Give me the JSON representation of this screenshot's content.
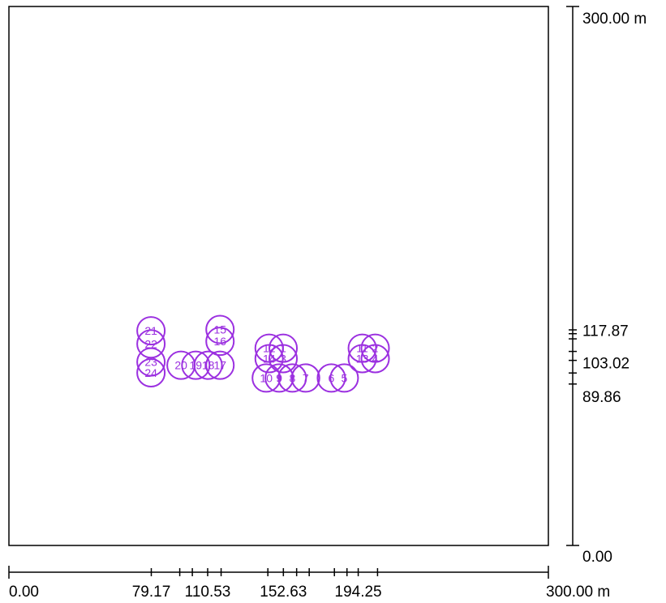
{
  "plot": {
    "extent_m": 300,
    "frame_color": "#000000",
    "node_color": "#9b30e0",
    "x_labels": [
      {
        "value": 0,
        "text": "0.00"
      },
      {
        "value": 79.17,
        "text": "79.17"
      },
      {
        "value": 110.53,
        "text": "110.53"
      },
      {
        "value": 152.63,
        "text": "152.63"
      },
      {
        "value": 194.25,
        "text": "194.25"
      },
      {
        "value": 300,
        "text": "300.00 m"
      }
    ],
    "x_ticks": [
      0,
      79.17,
      95,
      102,
      110.53,
      118,
      144,
      152.63,
      160,
      167,
      181,
      188,
      194.25,
      205,
      300
    ],
    "y_labels": [
      {
        "value": 0,
        "text": "0.00"
      },
      {
        "value": 89.86,
        "text": "89.86"
      },
      {
        "value": 103.02,
        "text": "103.02"
      },
      {
        "value": 117.87,
        "text": "117.87"
      },
      {
        "value": 300,
        "text": "300.00 m"
      }
    ],
    "y_ticks": [
      0,
      89.86,
      96,
      103.02,
      108,
      115,
      117.87,
      120,
      300
    ]
  },
  "nodes": [
    {
      "id": "1",
      "x": 152.5,
      "y": 109.8
    },
    {
      "id": "2",
      "x": 203.7,
      "y": 109.8
    },
    {
      "id": "3",
      "x": 152.5,
      "y": 104.0
    },
    {
      "id": "4",
      "x": 203.7,
      "y": 104.0
    },
    {
      "id": "5",
      "x": 186.5,
      "y": 93.2
    },
    {
      "id": "6",
      "x": 179.3,
      "y": 93.2
    },
    {
      "id": "7",
      "x": 165.0,
      "y": 93.2
    },
    {
      "id": "8",
      "x": 157.6,
      "y": 93.2
    },
    {
      "id": "9",
      "x": 150.3,
      "y": 93.2
    },
    {
      "id": "10",
      "x": 143.1,
      "y": 93.2
    },
    {
      "id": "11",
      "x": 196.5,
      "y": 109.8
    },
    {
      "id": "12",
      "x": 144.7,
      "y": 109.8
    },
    {
      "id": "13",
      "x": 196.5,
      "y": 104.0
    },
    {
      "id": "14",
      "x": 144.7,
      "y": 104.0
    },
    {
      "id": "15",
      "x": 117.4,
      "y": 120.2
    },
    {
      "id": "16",
      "x": 117.4,
      "y": 113.6
    },
    {
      "id": "17",
      "x": 117.4,
      "y": 100.3
    },
    {
      "id": "18",
      "x": 110.8,
      "y": 100.3
    },
    {
      "id": "19",
      "x": 103.9,
      "y": 100.3
    },
    {
      "id": "20",
      "x": 95.7,
      "y": 100.3
    },
    {
      "id": "21",
      "x": 79.0,
      "y": 119.5
    },
    {
      "id": "22",
      "x": 79.0,
      "y": 112.2
    },
    {
      "id": "23",
      "x": 79.0,
      "y": 102.1
    },
    {
      "id": "24",
      "x": 79.0,
      "y": 96.1
    }
  ]
}
